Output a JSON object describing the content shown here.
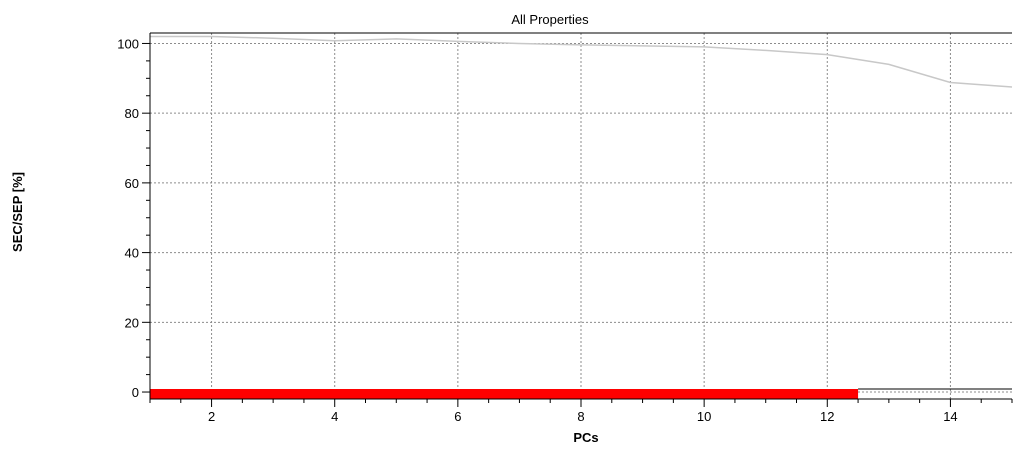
{
  "chart_data": {
    "type": "line",
    "title": "All Properties",
    "xlabel": "PCs",
    "ylabel": "SEC/SEP [%]",
    "xlim": [
      1,
      15
    ],
    "ylim": [
      -2,
      103
    ],
    "x_ticks": [
      2,
      4,
      6,
      8,
      10,
      12,
      14
    ],
    "y_ticks": [
      0,
      20,
      40,
      60,
      80,
      100
    ],
    "grid": true,
    "series": [
      {
        "color": "#c8c8c8",
        "x": [
          1,
          2,
          3,
          4,
          5,
          6,
          7,
          8,
          9,
          10,
          11,
          12,
          13,
          14,
          15
        ],
        "values": [
          102.0,
          102.0,
          101.5,
          100.8,
          101.3,
          100.6,
          100.0,
          99.6,
          99.3,
          99.0,
          98.0,
          96.8,
          94.0,
          88.8,
          87.5
        ]
      }
    ],
    "selection_bar": {
      "color": "#ff0000",
      "from": 1,
      "to": 12.5
    }
  }
}
